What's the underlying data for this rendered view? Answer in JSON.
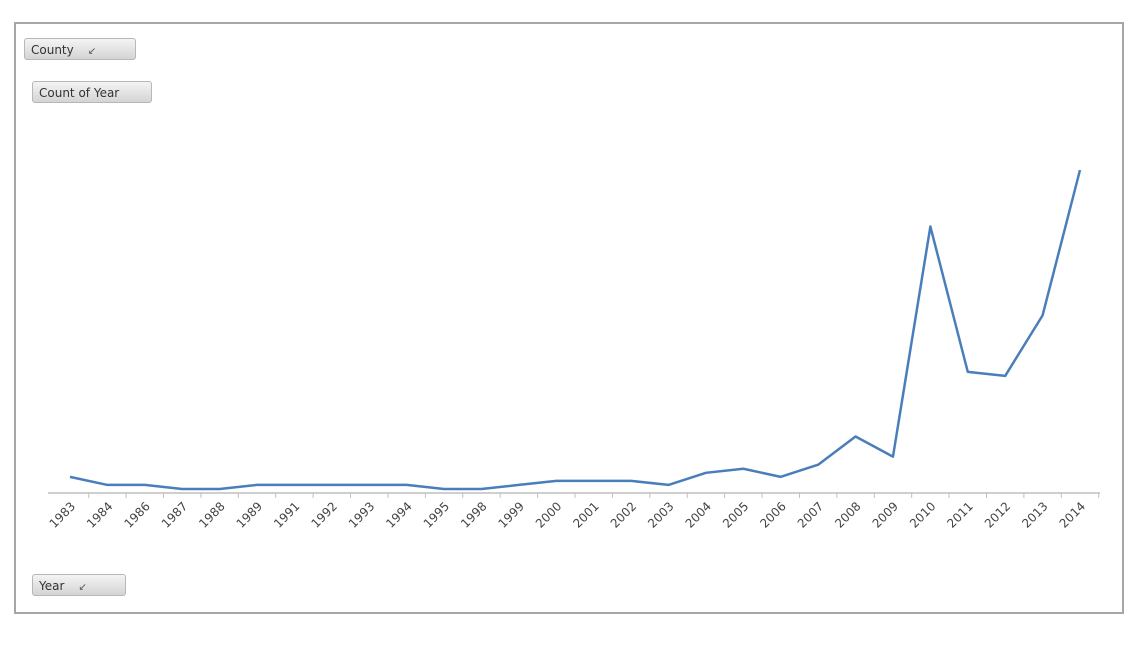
{
  "chart_data": {
    "type": "line",
    "filter_button": "County",
    "value_button": "Count of Year",
    "axis_button": "Year",
    "categories": [
      "1983",
      "1984",
      "1986",
      "1987",
      "1988",
      "1989",
      "1991",
      "1992",
      "1993",
      "1994",
      "1995",
      "1998",
      "1999",
      "2000",
      "2001",
      "2002",
      "2003",
      "2004",
      "2005",
      "2006",
      "2007",
      "2008",
      "2009",
      "2010",
      "2011",
      "2012",
      "2013",
      "2014"
    ],
    "values": [
      4,
      2,
      2,
      1,
      1,
      2,
      2,
      2,
      2,
      2,
      1,
      1,
      2,
      3,
      3,
      3,
      2,
      5,
      6,
      4,
      7,
      14,
      9,
      66,
      30,
      29,
      44,
      80
    ],
    "color": "#4a7ebb"
  }
}
